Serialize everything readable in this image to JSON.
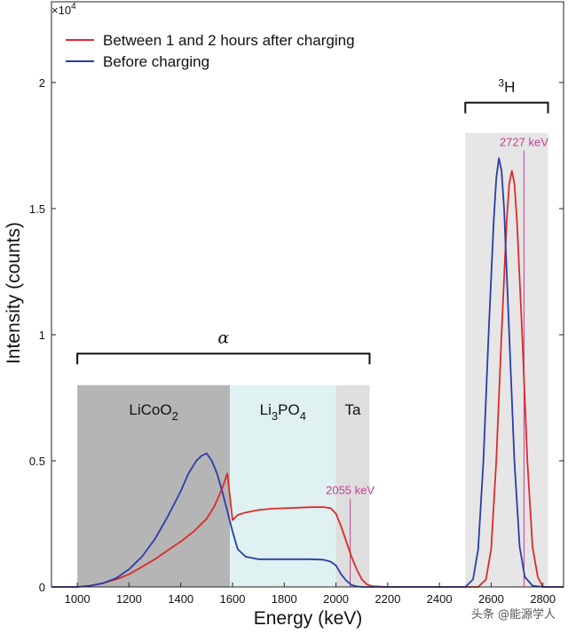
{
  "chart_data": {
    "type": "line",
    "xlabel": "Energy (keV)",
    "ylabel": "Intensity (counts)",
    "xlim": [
      900,
      2880
    ],
    "ylim": [
      0,
      23200
    ],
    "y_multiplier": "×10",
    "y_multiplier_exp": "4",
    "x_ticks": [
      1000,
      1200,
      1400,
      1600,
      1800,
      2000,
      2200,
      2400,
      2600,
      2800
    ],
    "x_tick_labels": [
      "1000",
      "1200",
      "1400",
      "1600",
      "1800",
      "2000",
      "2200",
      "2400",
      "2600",
      "2800"
    ],
    "y_ticks": [
      0,
      5000,
      10000,
      15000,
      20000
    ],
    "y_tick_labels": [
      "0",
      "0.5",
      "1",
      "1.5",
      "2"
    ],
    "grid": false,
    "legend_position": "top-left",
    "regions": [
      {
        "label": "LiCoO",
        "sub": "2",
        "x0": 1000,
        "x1": 1590,
        "y1": 8000,
        "color": "#b5b5b5"
      },
      {
        "label": "Li",
        "sub": "3",
        "label2": "PO",
        "sub2": "4",
        "x0": 1590,
        "x1": 2000,
        "y1": 8000,
        "color": "#e0f1f1"
      },
      {
        "label": "Ta",
        "x0": 2000,
        "x1": 2130,
        "y1": 8000,
        "color": "#dedede"
      },
      {
        "label": "",
        "x0": 2500,
        "x1": 2820,
        "y1": 18000,
        "color": "#e6e6e6"
      }
    ],
    "brackets": [
      {
        "label": "α",
        "x0": 1000,
        "x1": 2130,
        "y": 9250
      },
      {
        "label_sup": "3",
        "label": "H",
        "x0": 2500,
        "x1": 2820,
        "y": 19200
      }
    ],
    "markers": [
      {
        "label": "2055 keV",
        "x": 2055,
        "y0": 0,
        "y1": 3500,
        "color": "#c0428f"
      },
      {
        "label": "2727 keV",
        "x": 2727,
        "y0": 0,
        "y1": 17300,
        "color": "#c0428f"
      }
    ],
    "series": [
      {
        "name": "Between 1 and 2 hours after charging",
        "color": "#dd2a2a",
        "x": [
          900,
          1000,
          1050,
          1100,
          1150,
          1200,
          1250,
          1300,
          1350,
          1400,
          1450,
          1500,
          1530,
          1560,
          1580,
          1600,
          1620,
          1650,
          1700,
          1750,
          1800,
          1850,
          1900,
          1950,
          1980,
          2000,
          2020,
          2040,
          2060,
          2080,
          2100,
          2120,
          2140,
          2200,
          2400,
          2550,
          2580,
          2600,
          2620,
          2640,
          2660,
          2670,
          2680,
          2690,
          2700,
          2720,
          2740,
          2760,
          2780,
          2800,
          2880
        ],
        "y": [
          0,
          0,
          50,
          150,
          300,
          500,
          800,
          1100,
          1450,
          1800,
          2200,
          2700,
          3200,
          3900,
          4500,
          2650,
          2850,
          2950,
          3050,
          3100,
          3120,
          3140,
          3160,
          3170,
          3120,
          2900,
          2400,
          1800,
          1200,
          700,
          300,
          100,
          30,
          0,
          0,
          0,
          300,
          1500,
          5000,
          10000,
          14500,
          16000,
          16500,
          16000,
          14500,
          10000,
          5000,
          1600,
          400,
          0,
          0
        ]
      },
      {
        "name": "Before charging",
        "color": "#2b3ca8",
        "x": [
          900,
          1000,
          1050,
          1100,
          1150,
          1200,
          1250,
          1300,
          1350,
          1400,
          1430,
          1460,
          1480,
          1500,
          1520,
          1540,
          1560,
          1580,
          1600,
          1620,
          1650,
          1700,
          1800,
          1900,
          1950,
          1980,
          2000,
          2020,
          2040,
          2060,
          2080,
          2100,
          2400,
          2500,
          2530,
          2550,
          2570,
          2590,
          2610,
          2620,
          2630,
          2640,
          2650,
          2670,
          2690,
          2710,
          2730,
          2760,
          2800,
          2880
        ],
        "y": [
          0,
          0,
          50,
          150,
          350,
          700,
          1200,
          1900,
          2800,
          3800,
          4500,
          5000,
          5200,
          5300,
          5000,
          4500,
          3800,
          3000,
          2200,
          1500,
          1200,
          1100,
          1100,
          1100,
          1080,
          1000,
          850,
          500,
          250,
          80,
          20,
          0,
          0,
          0,
          300,
          1500,
          5000,
          10000,
          14500,
          16200,
          17000,
          16500,
          15000,
          10000,
          5000,
          1600,
          400,
          50,
          0,
          0
        ]
      }
    ]
  },
  "watermark": "头条 @能源学人"
}
